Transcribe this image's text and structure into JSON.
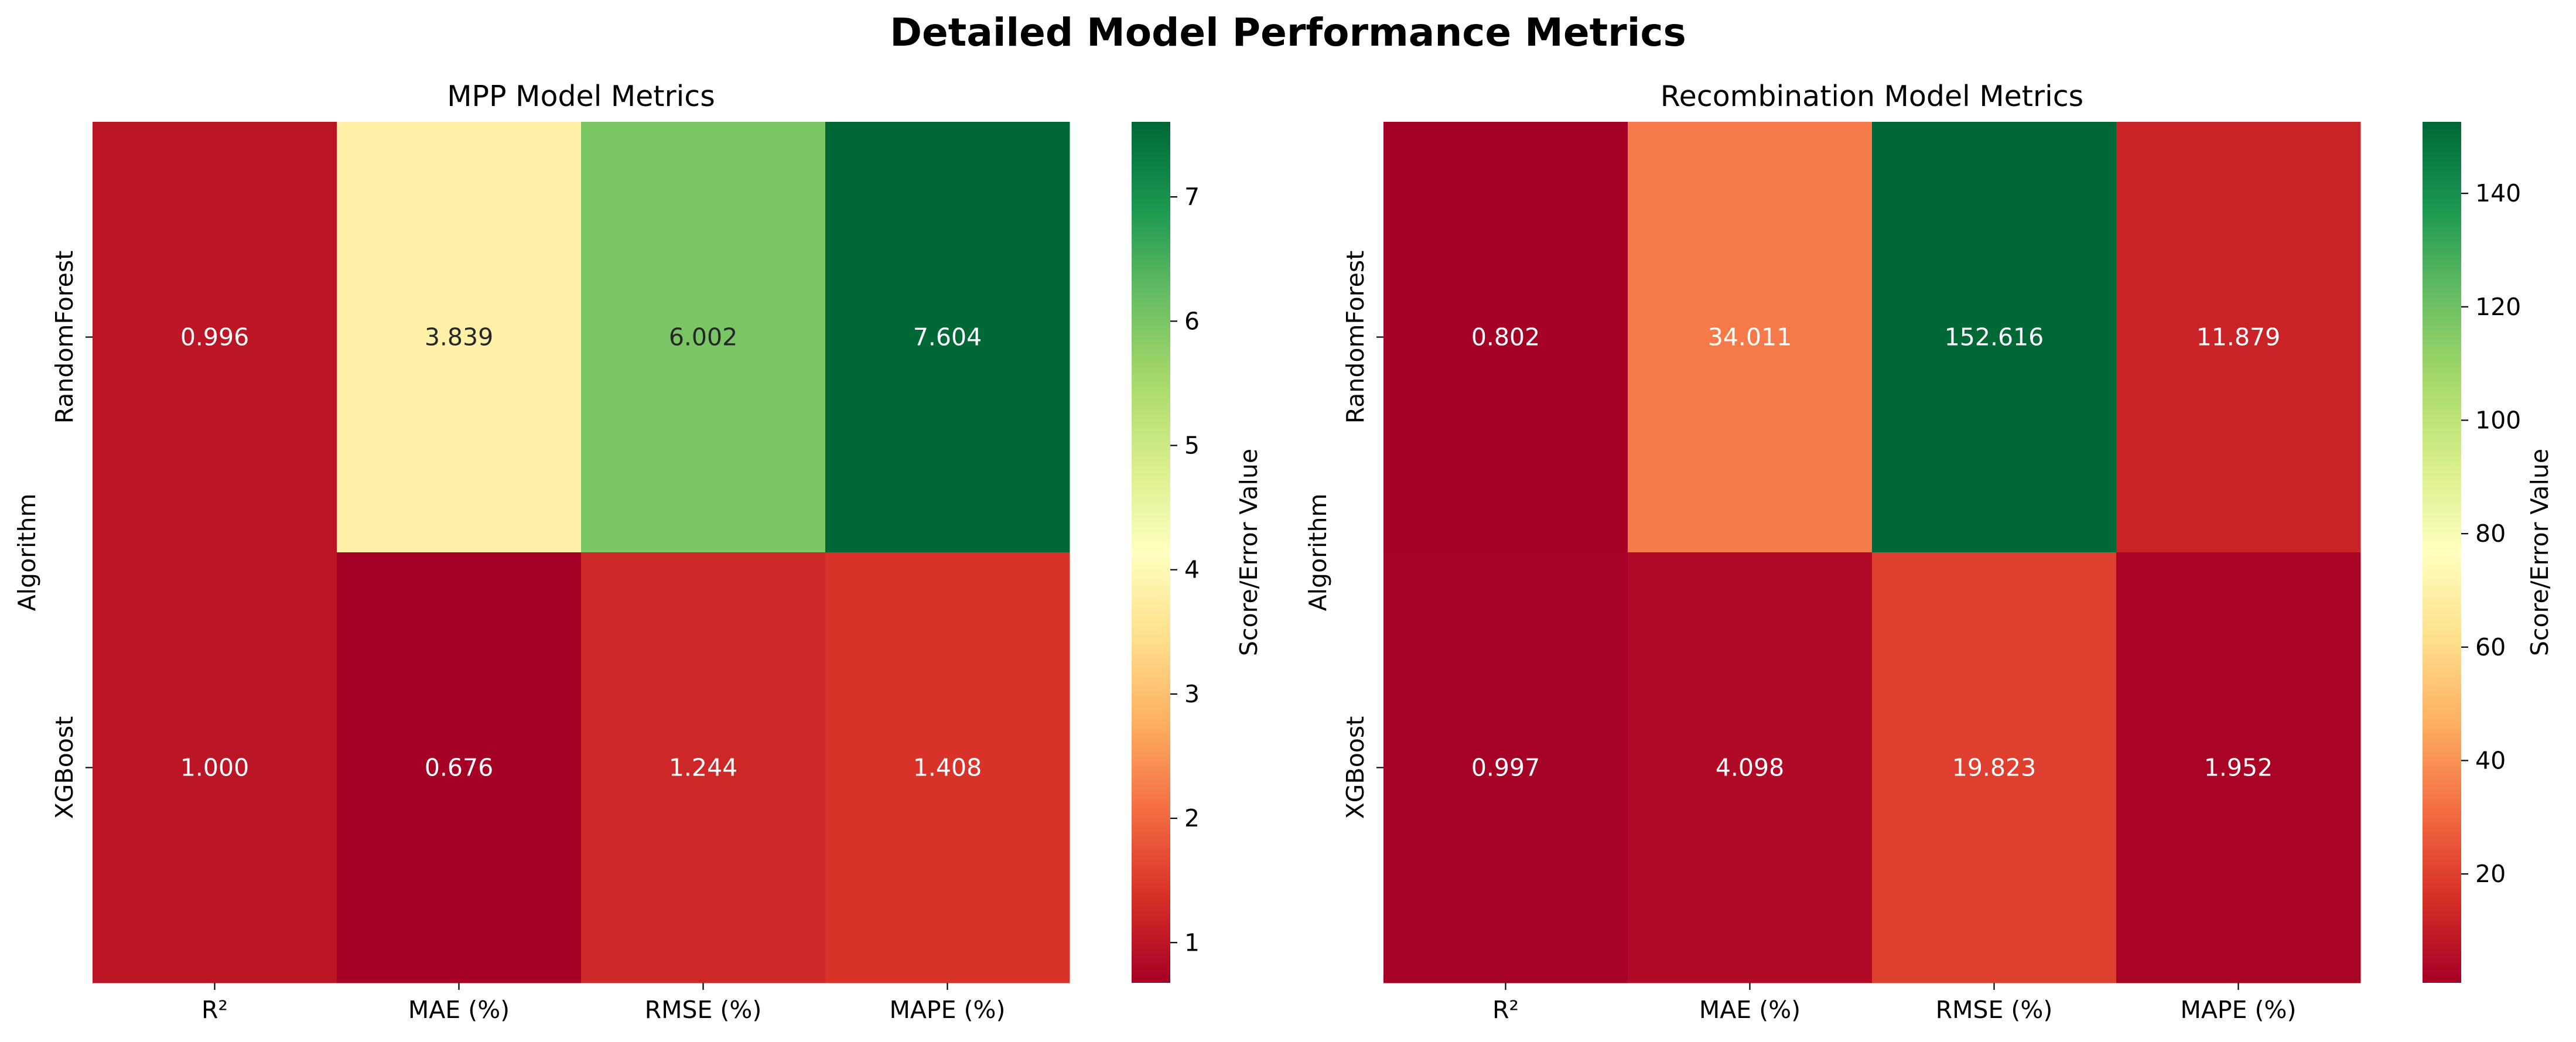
{
  "chart_data": {
    "suptitle": "Detailed Model Performance Metrics",
    "panels": [
      {
        "type": "heatmap",
        "title": "MPP Model Metrics",
        "ylabel": "Algorithm",
        "xlabel": "",
        "x_categories": [
          "R²",
          "MAE (%)",
          "RMSE (%)",
          "MAPE (%)"
        ],
        "y_categories": [
          "RandomForest",
          "XGBoost"
        ],
        "values": [
          [
            0.996,
            3.839,
            6.002,
            7.604
          ],
          [
            1.0,
            0.676,
            1.244,
            1.408
          ]
        ],
        "labels": [
          [
            "0.996",
            "3.839",
            "6.002",
            "7.604"
          ],
          [
            "1.000",
            "0.676",
            "1.244",
            "1.408"
          ]
        ],
        "colormap": "RdYlGn",
        "vmin": 0.676,
        "vmax": 7.604,
        "colorbar": {
          "label": "Score/Error Value",
          "ticks": [
            1,
            2,
            3,
            4,
            5,
            6,
            7
          ],
          "tick_labels": [
            "1",
            "2",
            "3",
            "4",
            "5",
            "6",
            "7"
          ]
        }
      },
      {
        "type": "heatmap",
        "title": "Recombination Model Metrics",
        "ylabel": "Algorithm",
        "xlabel": "",
        "x_categories": [
          "R²",
          "MAE (%)",
          "RMSE (%)",
          "MAPE (%)"
        ],
        "y_categories": [
          "RandomForest",
          "XGBoost"
        ],
        "values": [
          [
            0.802,
            34.011,
            152.616,
            11.879
          ],
          [
            0.997,
            4.098,
            19.823,
            1.952
          ]
        ],
        "labels": [
          [
            "0.802",
            "34.011",
            "152.616",
            "11.879"
          ],
          [
            "0.997",
            "4.098",
            "19.823",
            "1.952"
          ]
        ],
        "colormap": "RdYlGn",
        "vmin": 0.802,
        "vmax": 152.616,
        "colorbar": {
          "label": "Score/Error Value",
          "ticks": [
            20,
            40,
            60,
            80,
            100,
            120,
            140
          ],
          "tick_labels": [
            "20",
            "40",
            "60",
            "80",
            "100",
            "120",
            "140"
          ]
        }
      }
    ]
  }
}
